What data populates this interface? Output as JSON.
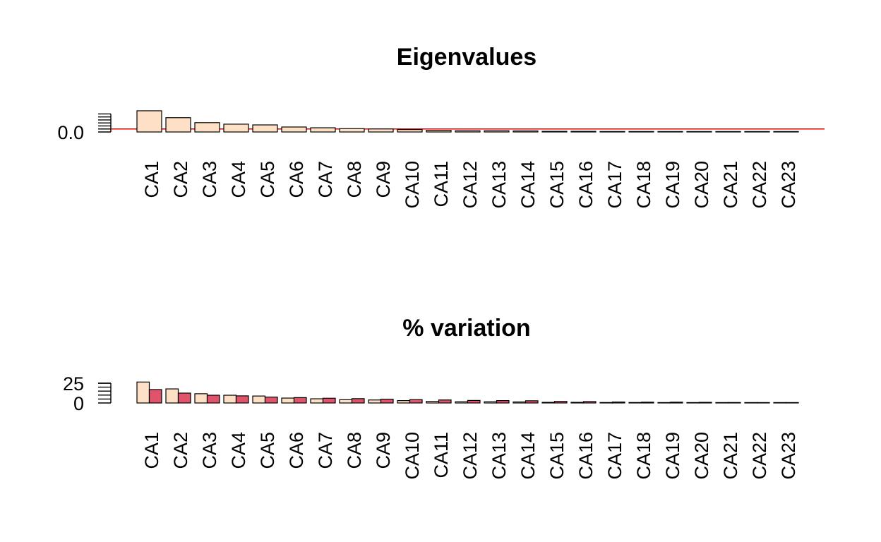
{
  "colors": {
    "bar_fill": "#fde0c5",
    "bar_fill2": "#df536b",
    "bar_stroke": "#000000",
    "ref_line": "#cc0000",
    "background": "#ffffff"
  },
  "chart_data": [
    {
      "type": "bar",
      "title": "Eigenvalues",
      "xlabel": "",
      "ylabel": "",
      "y_tick_labels": [
        "0.0"
      ],
      "y_tick_values": [
        0.0
      ],
      "y_minor_ticks": [
        0.02,
        0.04,
        0.06,
        0.08,
        0.1,
        0.12
      ],
      "ylim": [
        -0.005,
        0.15
      ],
      "reference_line": 0.02,
      "categories": [
        "CA1",
        "CA2",
        "CA3",
        "CA4",
        "CA5",
        "CA6",
        "CA7",
        "CA8",
        "CA9",
        "CA10",
        "CA11",
        "CA12",
        "CA13",
        "CA14",
        "CA15",
        "CA16",
        "CA17",
        "CA18",
        "CA19",
        "CA20",
        "CA21",
        "CA22",
        "CA23"
      ],
      "series": [
        {
          "values": [
            0.141,
            0.095,
            0.062,
            0.052,
            0.047,
            0.033,
            0.028,
            0.022,
            0.02,
            0.016,
            0.011,
            0.008,
            0.008,
            0.007,
            0.004,
            0.004,
            0.003,
            0.003,
            0.002,
            0.002,
            0.002,
            0.001,
            0.001
          ]
        }
      ],
      "grid": false
    },
    {
      "type": "bar",
      "title": "% variation",
      "xlabel": "",
      "ylabel": "",
      "y_tick_labels": [
        "25",
        "0"
      ],
      "y_tick_values": [
        25,
        0
      ],
      "y_minor_ticks": [
        5,
        10,
        15,
        20,
        25
      ],
      "ylim": [
        -1,
        28
      ],
      "categories": [
        "CA1",
        "CA2",
        "CA3",
        "CA4",
        "CA5",
        "CA6",
        "CA7",
        "CA8",
        "CA9",
        "CA10",
        "CA11",
        "CA12",
        "CA13",
        "CA14",
        "CA15",
        "CA16",
        "CA17",
        "CA18",
        "CA19",
        "CA20",
        "CA21",
        "CA22",
        "CA23"
      ],
      "series": [
        {
          "values": [
            26.5,
            17.8,
            11.7,
            9.8,
            8.8,
            6.2,
            5.3,
            4.1,
            3.8,
            3.0,
            2.1,
            1.5,
            1.5,
            1.3,
            0.8,
            0.8,
            0.6,
            0.6,
            0.4,
            0.4,
            0.4,
            0.2,
            0.2
          ]
        },
        {
          "values": [
            17.0,
            12.5,
            9.8,
            9.0,
            7.5,
            6.8,
            6.0,
            5.5,
            4.8,
            4.2,
            3.8,
            3.2,
            3.0,
            2.8,
            2.0,
            1.8,
            1.2,
            1.0,
            1.0,
            0.8,
            0.6,
            0.4,
            0.3
          ]
        }
      ],
      "grid": false
    }
  ]
}
